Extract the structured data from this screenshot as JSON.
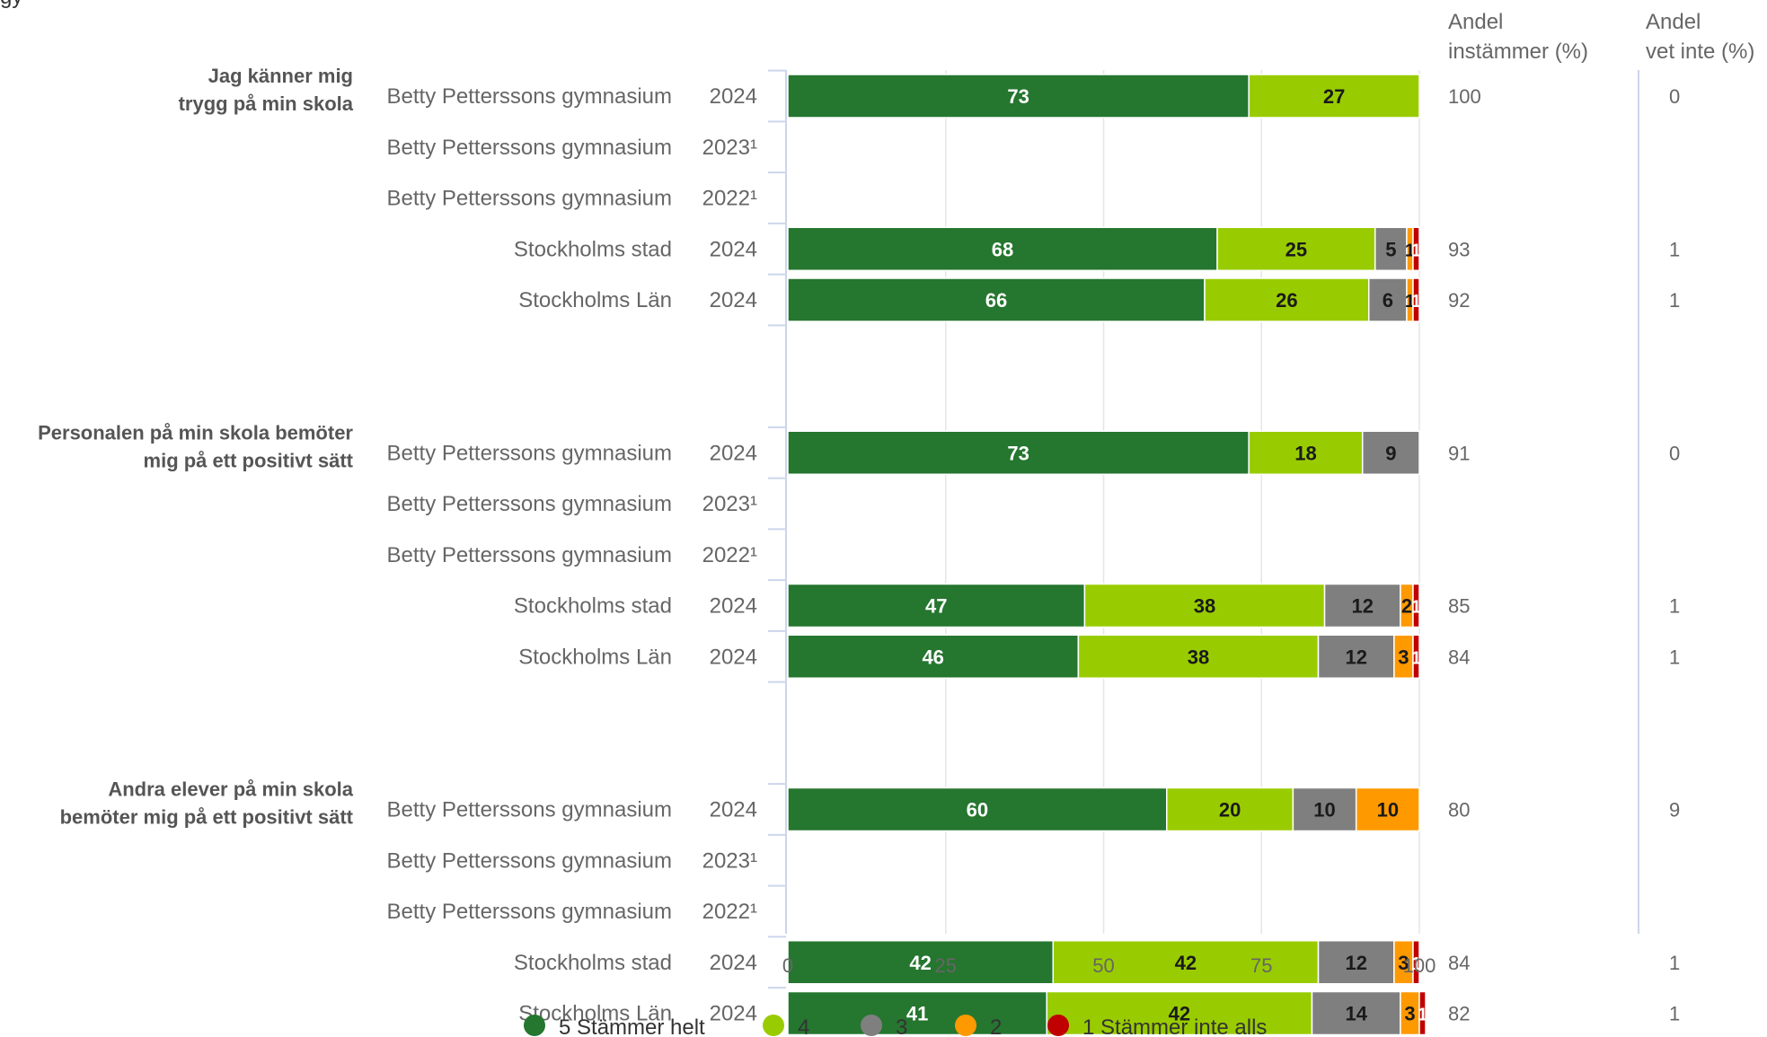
{
  "header": {
    "clipped_text": "gy"
  },
  "columns": {
    "agree": [
      "Andel",
      "instämmer (%)"
    ],
    "dont_know": [
      "Andel",
      "vet inte (%)"
    ]
  },
  "colors": {
    "5": "#25762f",
    "4": "#99cc00",
    "3": "#7f7f7f",
    "2": "#ff9900",
    "1": "#c00000",
    "axis": "#ccd6eb",
    "grid": "#e6e6e6",
    "row_label": "#666666",
    "group_label": "#555555"
  },
  "chart_data": {
    "type": "bar",
    "orientation": "horizontal",
    "stacked": true,
    "xlim": [
      0,
      100
    ],
    "xticks": [
      0,
      25,
      50,
      75,
      100
    ],
    "grid": true,
    "legend_position": "bottom",
    "legend": [
      "5 Stämmer helt",
      "4",
      "3",
      "2",
      "1 Stämmer inte alls"
    ],
    "series_keys": [
      "5",
      "4",
      "3",
      "2",
      "1"
    ],
    "groups": [
      {
        "label": [
          "Jag känner mig",
          "trygg på min skola"
        ],
        "rows": [
          {
            "name": "Betty Petterssons gymnasium",
            "year": "2024",
            "values": [
              73,
              27,
              0,
              0,
              0
            ],
            "labels": [
              "73",
              "27",
              "",
              "",
              "0"
            ],
            "agree": "100",
            "dont_know": "0"
          },
          {
            "name": "Betty Petterssons gymnasium",
            "year": "2023¹",
            "values": null,
            "labels": null,
            "agree": "",
            "dont_know": ""
          },
          {
            "name": "Betty Petterssons gymnasium",
            "year": "2022¹",
            "values": null,
            "labels": null,
            "agree": "",
            "dont_know": ""
          },
          {
            "name": "Stockholms stad",
            "year": "2024",
            "values": [
              68,
              25,
              5,
              1,
              1
            ],
            "labels": [
              "68",
              "25",
              "5",
              "1",
              "1"
            ],
            "agree": "93",
            "dont_know": "1"
          },
          {
            "name": "Stockholms Län",
            "year": "2024",
            "values": [
              66,
              26,
              6,
              1,
              1
            ],
            "labels": [
              "66",
              "26",
              "6",
              "1",
              "1"
            ],
            "agree": "92",
            "dont_know": "1"
          }
        ]
      },
      {
        "label": [
          "Personalen på min skola bemöter",
          "mig på ett positivt sätt"
        ],
        "rows": [
          {
            "name": "Betty Petterssons gymnasium",
            "year": "2024",
            "values": [
              73,
              18,
              9,
              0,
              0
            ],
            "labels": [
              "73",
              "18",
              "9",
              "",
              "0"
            ],
            "agree": "91",
            "dont_know": "0"
          },
          {
            "name": "Betty Petterssons gymnasium",
            "year": "2023¹",
            "values": null,
            "labels": null,
            "agree": "",
            "dont_know": ""
          },
          {
            "name": "Betty Petterssons gymnasium",
            "year": "2022¹",
            "values": null,
            "labels": null,
            "agree": "",
            "dont_know": ""
          },
          {
            "name": "Stockholms stad",
            "year": "2024",
            "values": [
              47,
              38,
              12,
              2,
              1
            ],
            "labels": [
              "47",
              "38",
              "12",
              "2",
              "1"
            ],
            "agree": "85",
            "dont_know": "1"
          },
          {
            "name": "Stockholms Län",
            "year": "2024",
            "values": [
              46,
              38,
              12,
              3,
              1
            ],
            "labels": [
              "46",
              "38",
              "12",
              "3",
              "1"
            ],
            "agree": "84",
            "dont_know": "1"
          }
        ]
      },
      {
        "label": [
          "Andra elever på min skola",
          "bemöter mig på ett positivt sätt"
        ],
        "rows": [
          {
            "name": "Betty Petterssons gymnasium",
            "year": "2024",
            "values": [
              60,
              20,
              10,
              10,
              0
            ],
            "labels": [
              "60",
              "20",
              "10",
              "10",
              "0"
            ],
            "agree": "80",
            "dont_know": "9"
          },
          {
            "name": "Betty Petterssons gymnasium",
            "year": "2023¹",
            "values": null,
            "labels": null,
            "agree": "",
            "dont_know": ""
          },
          {
            "name": "Betty Petterssons gymnasium",
            "year": "2022¹",
            "values": null,
            "labels": null,
            "agree": "",
            "dont_know": ""
          },
          {
            "name": "Stockholms stad",
            "year": "2024",
            "values": [
              42,
              42,
              12,
              3,
              1
            ],
            "labels": [
              "42",
              "42",
              "12",
              "3",
              "1"
            ],
            "agree": "84",
            "dont_know": "1"
          },
          {
            "name": "Stockholms Län",
            "year": "2024",
            "values": [
              41,
              42,
              14,
              3,
              1
            ],
            "labels": [
              "41",
              "42",
              "14",
              "3",
              "1"
            ],
            "agree": "82",
            "dont_know": "1"
          }
        ]
      }
    ]
  }
}
